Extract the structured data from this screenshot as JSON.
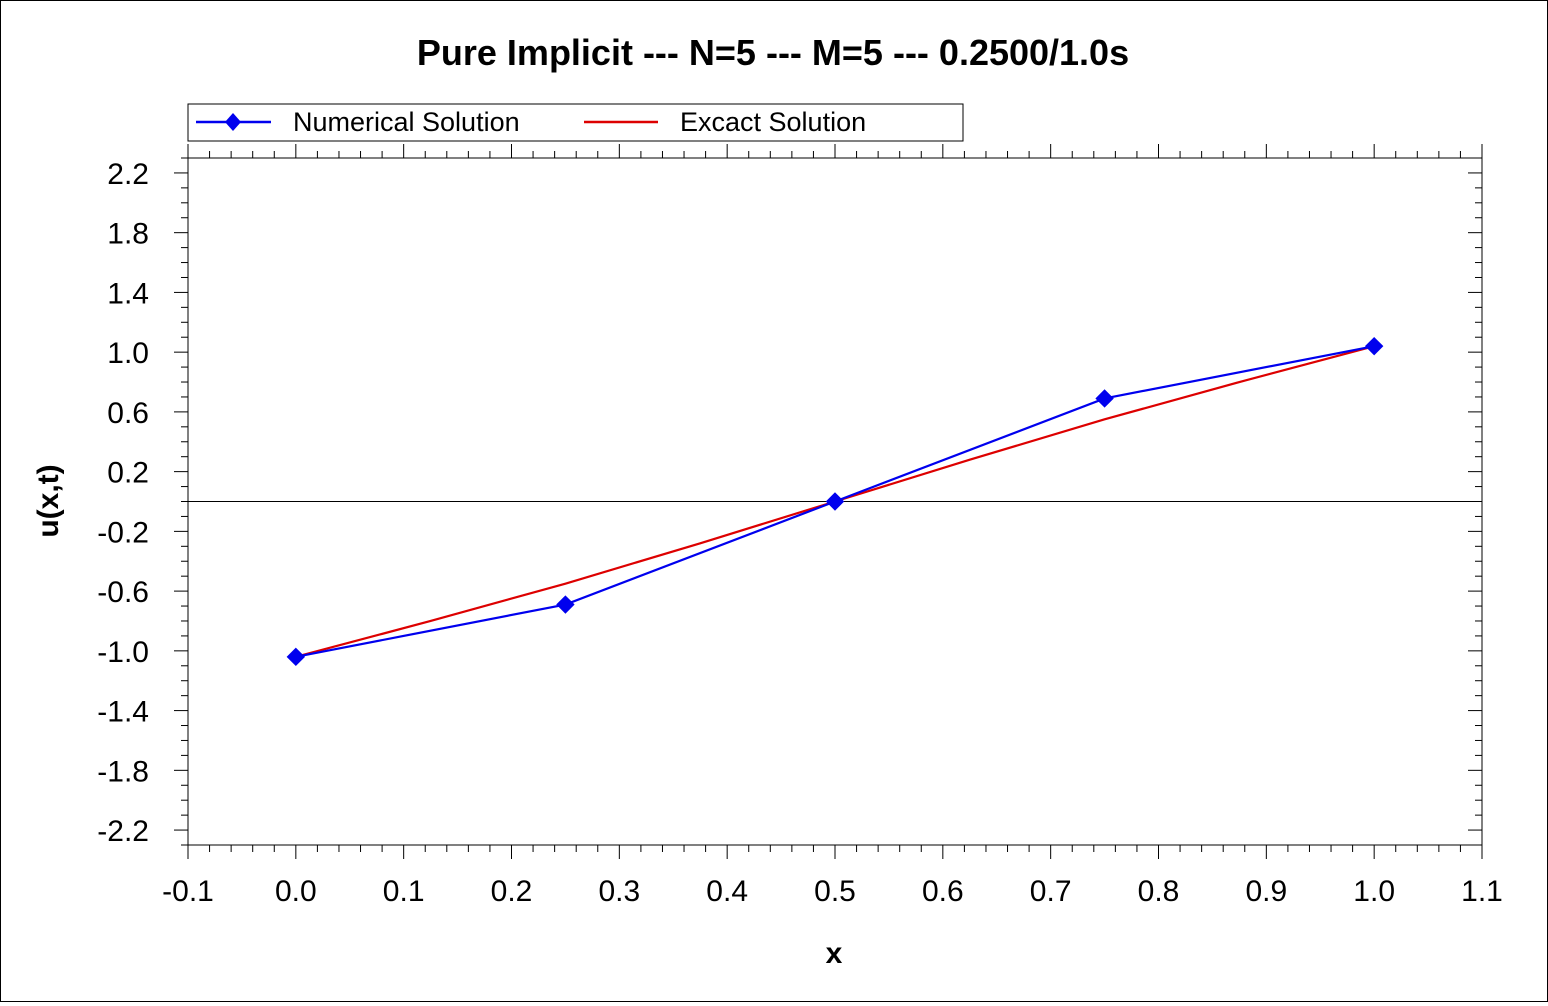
{
  "chart_data": {
    "type": "line",
    "title": "Pure Implicit --- N=5 --- M=5 --- 0.2500/1.0s",
    "xlabel": "x",
    "ylabel": "u(x,t)",
    "xlim": [
      -0.1,
      1.1
    ],
    "ylim": [
      -2.3,
      2.3
    ],
    "x_ticks": [
      -0.1,
      0.0,
      0.1,
      0.2,
      0.3,
      0.4,
      0.5,
      0.6,
      0.7,
      0.8,
      0.9,
      1.0,
      1.1
    ],
    "x_tick_labels": [
      "-0.1",
      "0.0",
      "0.1",
      "0.2",
      "0.3",
      "0.4",
      "0.5",
      "0.6",
      "0.7",
      "0.8",
      "0.9",
      "1.0",
      "1.1"
    ],
    "y_ticks": [
      2.2,
      1.8,
      1.4,
      1.0,
      0.6,
      0.2,
      -0.2,
      -0.6,
      -1.0,
      -1.4,
      -1.8,
      -2.2
    ],
    "y_tick_labels": [
      "2.2",
      "1.8",
      "1.4",
      "1.0",
      "0.6",
      "0.2",
      "-0.2",
      "-0.6",
      "-1.0",
      "-1.4",
      "-1.8",
      "-2.2"
    ],
    "zero_line": true,
    "grid": false,
    "legend_position": "top-left",
    "series": [
      {
        "name": "Numerical Solution",
        "color": "#0000ee",
        "marker": "diamond",
        "x": [
          0.0,
          0.25,
          0.5,
          0.75,
          1.0
        ],
        "y": [
          -1.04,
          -0.69,
          0.0,
          0.69,
          1.04
        ]
      },
      {
        "name": "Excact Solution",
        "color": "#dd0000",
        "marker": "none",
        "x": [
          0.0,
          0.125,
          0.25,
          0.375,
          0.5,
          0.625,
          0.75,
          0.875,
          1.0
        ],
        "y": [
          -1.04,
          -0.8,
          -0.55,
          -0.28,
          0.0,
          0.28,
          0.55,
          0.8,
          1.04
        ]
      }
    ]
  }
}
